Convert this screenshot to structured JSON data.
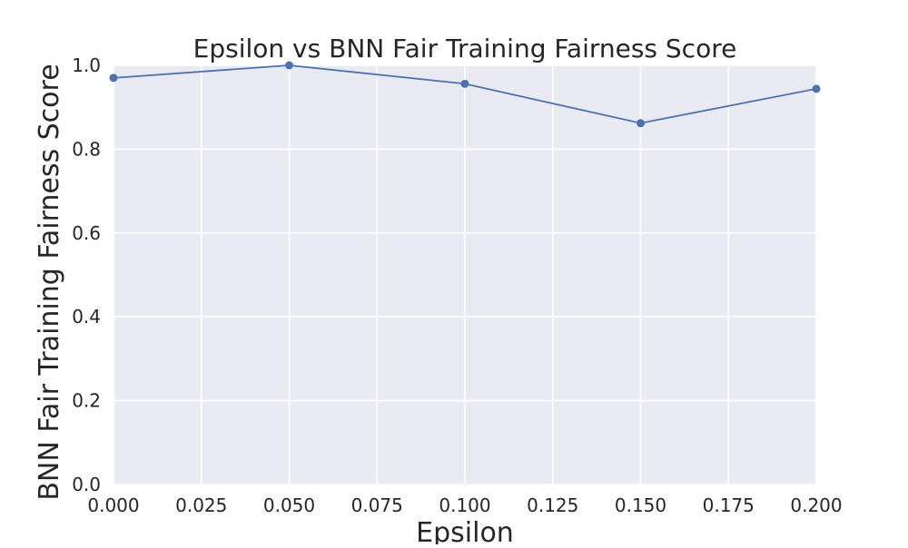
{
  "chart_data": {
    "type": "line",
    "title": "Epsilon vs BNN Fair Training Fairness Score",
    "xlabel": "Epsilon",
    "ylabel": "BNN Fair Training Fairness Score",
    "x": [
      0.0,
      0.05,
      0.1,
      0.15,
      0.2
    ],
    "series": [
      {
        "values": [
          0.97,
          1.0,
          0.956,
          0.862,
          0.944
        ]
      }
    ],
    "xlim": [
      0.0,
      0.2
    ],
    "ylim": [
      0.0,
      1.0
    ],
    "x_ticks": [
      "0.000",
      "0.025",
      "0.050",
      "0.075",
      "0.100",
      "0.125",
      "0.150",
      "0.175",
      "0.200"
    ],
    "y_ticks": [
      "0.0",
      "0.2",
      "0.4",
      "0.6",
      "0.8",
      "1.0"
    ],
    "grid": true,
    "colors": {
      "plot_background": "#eaeaf2",
      "grid": "#ffffff",
      "line": "#4c72b0"
    }
  }
}
